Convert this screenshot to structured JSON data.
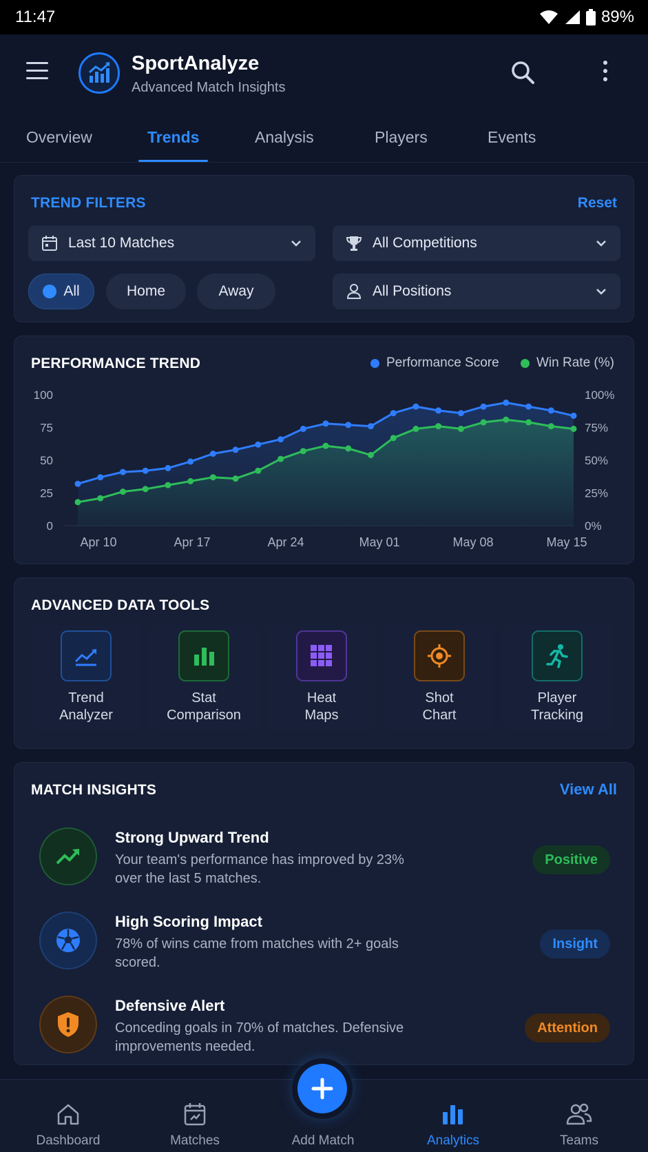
{
  "status_bar": {
    "time": "11:47",
    "battery": "89%"
  },
  "app": {
    "title": "SportAnalyze",
    "subtitle": "Advanced Match Insights"
  },
  "tabs": [
    {
      "label": "Overview",
      "active": false
    },
    {
      "label": "Trends",
      "active": true
    },
    {
      "label": "Analysis",
      "active": false
    },
    {
      "label": "Players",
      "active": false
    },
    {
      "label": "Events",
      "active": false
    }
  ],
  "filters": {
    "title": "TREND FILTERS",
    "reset_label": "Reset",
    "period": "Last 10 Matches",
    "competition": "All Competitions",
    "position": "All Positions",
    "venue_options": [
      {
        "label": "All",
        "active": true
      },
      {
        "label": "Home",
        "active": false
      },
      {
        "label": "Away",
        "active": false
      }
    ]
  },
  "performance": {
    "title": "PERFORMANCE TREND"
  },
  "chart_data": {
    "type": "line",
    "title": "PERFORMANCE TREND",
    "x_tick_labels": [
      "Apr 10",
      "Apr 17",
      "Apr 24",
      "May 01",
      "May 08",
      "May 15"
    ],
    "y_left_ticks": [
      "100",
      "75",
      "50",
      "25",
      "0"
    ],
    "y_right_ticks": [
      "100%",
      "75%",
      "50%",
      "25%",
      "0%"
    ],
    "ylim": [
      0,
      100
    ],
    "legend_position": "top-right",
    "series": [
      {
        "name": "Performance Score",
        "color": "#2f7dff",
        "values": [
          32,
          37,
          41,
          42,
          44,
          49,
          55,
          58,
          62,
          66,
          74,
          78,
          77,
          76,
          86,
          91,
          88,
          86,
          91,
          94,
          91,
          88,
          84
        ]
      },
      {
        "name": "Win Rate (%)",
        "color": "#2ebd5a",
        "values": [
          18,
          21,
          26,
          28,
          31,
          34,
          37,
          36,
          42,
          51,
          57,
          61,
          59,
          54,
          67,
          74,
          76,
          74,
          79,
          81,
          79,
          76,
          74
        ]
      }
    ]
  },
  "tools": {
    "title": "ADVANCED DATA TOOLS",
    "items": [
      {
        "line1": "Trend",
        "line2": "Analyzer",
        "icon": "trend-icon",
        "color": "#2f7dff"
      },
      {
        "line1": "Stat",
        "line2": "Comparison",
        "icon": "bar-chart-icon",
        "color": "#2ebd5a"
      },
      {
        "line1": "Heat",
        "line2": "Maps",
        "icon": "grid-icon",
        "color": "#8b5cf6"
      },
      {
        "line1": "Shot",
        "line2": "Chart",
        "icon": "target-icon",
        "color": "#f59e0b"
      },
      {
        "line1": "Player",
        "line2": "Tracking",
        "icon": "running-icon",
        "color": "#14b8a6"
      }
    ]
  },
  "insights": {
    "title": "MATCH INSIGHTS",
    "view_all_label": "View All",
    "items": [
      {
        "title": "Strong Upward Trend",
        "description": "Your team's performance has improved by 23% over the last 5 matches.",
        "badge": "Positive",
        "icon": "trending-up-icon",
        "color": "#2ebd5a"
      },
      {
        "title": "High Scoring Impact",
        "description": "78% of wins came from matches with 2+ goals scored.",
        "badge": "Insight",
        "icon": "soccer-ball-icon",
        "color": "#2f7dff"
      },
      {
        "title": "Defensive Alert",
        "description": "Conceding goals in 70% of matches. Defensive improvements needed.",
        "badge": "Attention",
        "icon": "shield-alert-icon",
        "color": "#f08a24"
      }
    ]
  },
  "bottom_nav": {
    "items": [
      {
        "label": "Dashboard",
        "icon": "home-icon",
        "active": false
      },
      {
        "label": "Matches",
        "icon": "calendar-icon",
        "active": false
      },
      {
        "label": "Add Match",
        "icon": "plus-icon",
        "active": false
      },
      {
        "label": "Analytics",
        "icon": "bar-chart-icon",
        "active": true
      },
      {
        "label": "Teams",
        "icon": "people-icon",
        "active": false
      }
    ]
  }
}
